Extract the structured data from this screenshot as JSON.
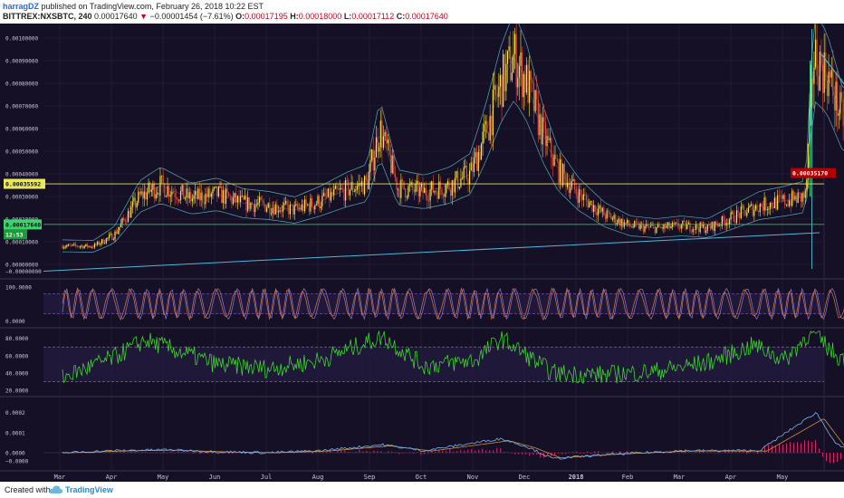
{
  "header": {
    "author": "harragDZ",
    "published": " published on TradingView.com, February 26, 2018 10:22 EST",
    "symbol": "BITTREX:NXSBTC, 240",
    "arrow": "▼",
    "change": "−0.00001454 (−7.61%)",
    "o_label": "O:",
    "o_val": "0.00017195",
    "h_label": "H:",
    "h_val": "0.00018000",
    "l_label": "L:",
    "l_val": "0.00017112",
    "c_label": "C:",
    "c_val": "0.00017640",
    "last_price": "0.00017640"
  },
  "footer": {
    "created": "Created with",
    "brand": "TradingView"
  },
  "colors": {
    "background": "#151025",
    "grid": "#2a2340",
    "candle_up": "#f7e54a",
    "candle_down": "#e24a3a",
    "bollinger": "#5fc6d6",
    "resistance": "#e8e85a",
    "support": "#3ad46a",
    "trendline": "#4fb6d8",
    "projection": "#3fe23a",
    "target_label": "#b00000",
    "stoch_k": "#e0783a",
    "stoch_d": "#8a7ad8",
    "rsi": "#3de02a",
    "macd": "#7ab4e8",
    "signal": "#e8a23a",
    "histogram": "#e2286a"
  },
  "chart_data": [
    {
      "type": "candlestick",
      "panel": "price",
      "y_ticks": [
        "0.00100000",
        "0.00090000",
        "0.00080000",
        "0.00070000",
        "0.00060000",
        "0.00050000",
        "0.00040000",
        "0.00030000",
        "0.00020000",
        "0.00010000",
        "0.00000000"
      ],
      "hidden_tick": "−0.00000000",
      "ylim": [
        -4e-05,
        0.00104
      ],
      "x_labels": [
        "Mar",
        "Apr",
        "May",
        "Jun",
        "Jul",
        "Aug",
        "Sep",
        "Oct",
        "Nov",
        "Dec",
        "2018",
        "Feb",
        "Mar",
        "Apr",
        "May"
      ],
      "bold_x_label": "2018",
      "approx_price_path": [
        [
          0,
          8.2e-05
        ],
        [
          0.6,
          8e-05
        ],
        [
          1.0,
          0.00013
        ],
        [
          1.5,
          0.0003
        ],
        [
          1.9,
          0.00035
        ],
        [
          2.5,
          0.00029
        ],
        [
          3.0,
          0.00031
        ],
        [
          3.5,
          0.00027
        ],
        [
          4.0,
          0.00026
        ],
        [
          4.5,
          0.00024
        ],
        [
          5.0,
          0.00028
        ],
        [
          5.5,
          0.00033
        ],
        [
          5.9,
          0.00036
        ],
        [
          6.15,
          0.0006
        ],
        [
          6.5,
          0.00034
        ],
        [
          7.0,
          0.00032
        ],
        [
          7.5,
          0.00035
        ],
        [
          7.9,
          0.0004
        ],
        [
          8.2,
          0.00058
        ],
        [
          8.5,
          0.0008
        ],
        [
          8.75,
          0.00092
        ],
        [
          9.0,
          0.0008
        ],
        [
          9.3,
          0.00058
        ],
        [
          9.6,
          0.00042
        ],
        [
          10.0,
          0.00031
        ],
        [
          10.5,
          0.00022
        ],
        [
          11.0,
          0.00017
        ],
        [
          11.5,
          0.00016
        ],
        [
          12.0,
          0.00017
        ],
        [
          12.5,
          0.00016
        ],
        [
          13.0,
          0.00021
        ],
        [
          13.5,
          0.00026
        ],
        [
          14.0,
          0.00028
        ],
        [
          14.4,
          0.0003
        ],
        [
          14.55,
          0.00092
        ],
        [
          14.8,
          0.00085
        ],
        [
          15.1,
          0.00065
        ],
        [
          15.5,
          0.00056
        ],
        [
          15.9,
          0.00052
        ],
        [
          16.3,
          0.00042
        ],
        [
          16.7,
          0.0003
        ],
        [
          17.0,
          0.00022
        ],
        [
          17.3,
          0.00018
        ],
        [
          17.5,
          0.000176
        ]
      ],
      "resistance_level": 0.00035592,
      "resistance_label": "0.00035592",
      "target_level": 0.0003517,
      "target_label": "0.00035170",
      "support_level": 0.0001764,
      "countdown_label": "12:53",
      "projection": "curved arrow from latest price rising to 0.00035170 target"
    },
    {
      "type": "line",
      "panel": "stochastic",
      "y_ticks": [
        "100.0000",
        "0.0000"
      ],
      "ylim": [
        -10,
        110
      ],
      "bands": [
        20,
        80
      ],
      "series": [
        "K",
        "D"
      ],
      "description": "oscillates rapidly between 0 and 100 throughout"
    },
    {
      "type": "line",
      "panel": "rsi",
      "y_ticks": [
        "80.0000",
        "60.0000",
        "40.0000",
        "20.0000"
      ],
      "ylim": [
        15,
        90
      ],
      "bands": [
        30,
        70
      ],
      "approx_values": [
        [
          0,
          35
        ],
        [
          1,
          58
        ],
        [
          1.6,
          78
        ],
        [
          2.4,
          62
        ],
        [
          3,
          50
        ],
        [
          4,
          45
        ],
        [
          5,
          55
        ],
        [
          6.2,
          82
        ],
        [
          7,
          48
        ],
        [
          8,
          55
        ],
        [
          8.5,
          80
        ],
        [
          9,
          60
        ],
        [
          9.5,
          40
        ],
        [
          10.5,
          38
        ],
        [
          11.5,
          42
        ],
        [
          12.5,
          52
        ],
        [
          13.4,
          72
        ],
        [
          14,
          55
        ],
        [
          14.5,
          88
        ],
        [
          15,
          60
        ],
        [
          15.5,
          48
        ],
        [
          16.5,
          40
        ],
        [
          17,
          30
        ],
        [
          17.5,
          40
        ]
      ]
    },
    {
      "type": "line",
      "panel": "macd",
      "y_ticks": [
        "0.0002",
        "0.0001",
        "0.0000",
        "−0.0000"
      ],
      "ylim": [
        -9e-05,
        0.00027
      ],
      "series": [
        "MACD",
        "Signal",
        "Histogram"
      ],
      "approx_values": [
        [
          0,
          0
        ],
        [
          1,
          1e-05
        ],
        [
          2,
          1.5e-05
        ],
        [
          3,
          5e-06
        ],
        [
          4,
          0
        ],
        [
          5,
          1e-05
        ],
        [
          6.2,
          4e-05
        ],
        [
          7,
          1e-05
        ],
        [
          8.5,
          7e-05
        ],
        [
          9,
          3e-05
        ],
        [
          9.5,
          -3e-05
        ],
        [
          10.5,
          -1e-05
        ],
        [
          12,
          1e-05
        ],
        [
          13.5,
          1e-05
        ],
        [
          14.6,
          0.0002
        ],
        [
          15,
          4e-05
        ],
        [
          15.5,
          -2e-05
        ],
        [
          16.5,
          -3e-05
        ],
        [
          17.5,
          0
        ]
      ]
    }
  ]
}
